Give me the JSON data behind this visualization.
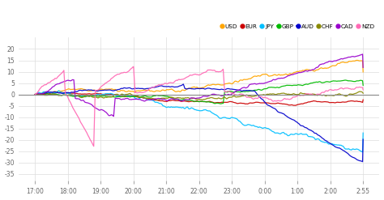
{
  "legend_labels": [
    "USD",
    "EUR",
    "JPY",
    "GBP",
    "AUD",
    "CHF",
    "CAD",
    "NZD"
  ],
  "legend_colors": [
    "#FFA500",
    "#CC0000",
    "#00BFFF",
    "#00BB00",
    "#0000CC",
    "#888800",
    "#9900CC",
    "#FF69B4"
  ],
  "x_ticks": [
    "17:00",
    "18:00",
    "19:00",
    "20:00",
    "21:00",
    "22:00",
    "23:00",
    "0:00",
    "1:00",
    "2:00",
    "2:55"
  ],
  "ylim": [
    -38,
    25
  ],
  "yticks": [
    -35,
    -30,
    -25,
    -20,
    -15,
    -10,
    -5,
    0,
    5,
    10,
    15,
    20
  ],
  "background_color": "#ffffff",
  "grid_color": "#dddddd",
  "n_points": 660
}
